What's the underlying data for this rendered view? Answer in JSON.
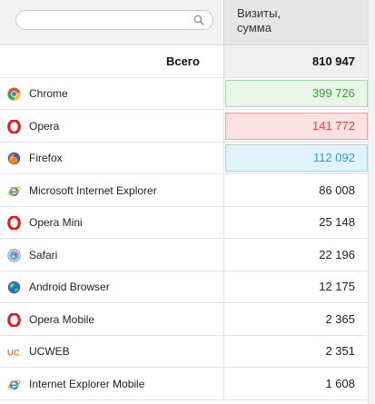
{
  "header": {
    "search": {
      "placeholder": "",
      "value": ""
    },
    "column_title": "Визиты,\nсумма"
  },
  "total": {
    "label": "Всего",
    "value": "810 947"
  },
  "rows": [
    {
      "name": "Chrome",
      "value": "399 726",
      "icon": "chrome-icon",
      "highlight": {
        "bg": "#e9f5e9",
        "border": "#a9d3a9",
        "color": "#3aa03a"
      }
    },
    {
      "name": "Opera",
      "value": "141 772",
      "icon": "opera-icon",
      "highlight": {
        "bg": "#fbe1e1",
        "border": "#e7a6a6",
        "color": "#e04848"
      }
    },
    {
      "name": "Firefox",
      "value": "112 092",
      "icon": "firefox-icon",
      "highlight": {
        "bg": "#e0f3fb",
        "border": "#a4d3e6",
        "color": "#23a3c9"
      }
    },
    {
      "name": "Microsoft Internet Explorer",
      "value": "86 008",
      "icon": "internet-explorer-icon"
    },
    {
      "name": "Opera Mini",
      "value": "25 148",
      "icon": "opera-icon"
    },
    {
      "name": "Safari",
      "value": "22 196",
      "icon": "safari-icon"
    },
    {
      "name": "Android Browser",
      "value": "12 175",
      "icon": "android-browser-icon"
    },
    {
      "name": "Opera Mobile",
      "value": "2 365",
      "icon": "opera-icon"
    },
    {
      "name": "UCWEB",
      "value": "2 351",
      "icon": "ucweb-icon"
    },
    {
      "name": "Internet Explorer Mobile",
      "value": "1 608",
      "icon": "internet-explorer-icon"
    }
  ]
}
